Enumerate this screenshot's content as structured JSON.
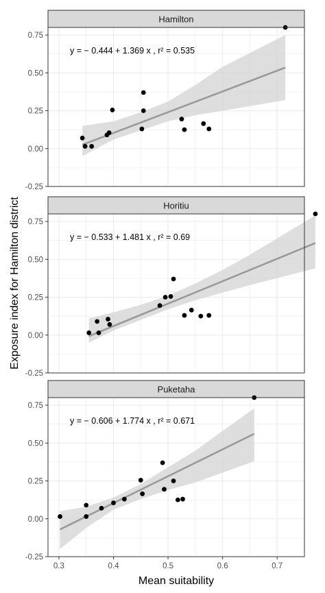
{
  "chart_data": [
    {
      "type": "scatter",
      "panel": "Hamilton",
      "equation": "y = − 0.444 + 1.369 x , r² = 0.535",
      "xlim": [
        0.28,
        0.75
      ],
      "ylim": [
        -0.25,
        0.8
      ],
      "x_ticks": [
        0.3,
        0.4,
        0.5,
        0.6,
        0.7
      ],
      "y_tick_labels": [
        "-0.25",
        "0.00",
        "0.25",
        "0.50",
        "0.75"
      ],
      "grid": true,
      "fit": {
        "intercept": -0.444,
        "slope": 1.369,
        "x_range": [
          0.343,
          0.715
        ]
      },
      "ci_band": [
        {
          "x": 0.343,
          "lo": -0.05,
          "hi": 0.15
        },
        {
          "x": 0.4,
          "lo": 0.06,
          "hi": 0.18
        },
        {
          "x": 0.45,
          "lo": 0.12,
          "hi": 0.24
        },
        {
          "x": 0.5,
          "lo": 0.18,
          "hi": 0.31
        },
        {
          "x": 0.55,
          "lo": 0.22,
          "hi": 0.42
        },
        {
          "x": 0.6,
          "lo": 0.25,
          "hi": 0.54
        },
        {
          "x": 0.715,
          "lo": 0.32,
          "hi": 0.75
        }
      ],
      "points": [
        {
          "x": 0.343,
          "y": 0.07
        },
        {
          "x": 0.348,
          "y": 0.015
        },
        {
          "x": 0.36,
          "y": 0.015
        },
        {
          "x": 0.388,
          "y": 0.09
        },
        {
          "x": 0.392,
          "y": 0.105
        },
        {
          "x": 0.398,
          "y": 0.255
        },
        {
          "x": 0.452,
          "y": 0.13
        },
        {
          "x": 0.455,
          "y": 0.25
        },
        {
          "x": 0.455,
          "y": 0.37
        },
        {
          "x": 0.525,
          "y": 0.195
        },
        {
          "x": 0.53,
          "y": 0.125
        },
        {
          "x": 0.565,
          "y": 0.165
        },
        {
          "x": 0.575,
          "y": 0.13
        },
        {
          "x": 0.715,
          "y": 0.8
        }
      ]
    },
    {
      "type": "scatter",
      "panel": "Horitiu",
      "equation": "y = − 0.533 + 1.481 x , r² = 0.69",
      "xlim": [
        0.28,
        0.75
      ],
      "ylim": [
        -0.25,
        0.8
      ],
      "x_ticks": [
        0.3,
        0.4,
        0.5,
        0.6,
        0.7
      ],
      "y_tick_labels": [
        "-0.25",
        "0.00",
        "0.25",
        "0.50",
        "0.75"
      ],
      "grid": true,
      "fit": {
        "intercept": -0.533,
        "slope": 1.481,
        "x_range": [
          0.355,
          0.77
        ]
      },
      "ci_band": [
        {
          "x": 0.355,
          "lo": -0.05,
          "hi": 0.11
        },
        {
          "x": 0.4,
          "lo": 0.03,
          "hi": 0.15
        },
        {
          "x": 0.45,
          "lo": 0.1,
          "hi": 0.2
        },
        {
          "x": 0.5,
          "lo": 0.17,
          "hi": 0.26
        },
        {
          "x": 0.55,
          "lo": 0.23,
          "hi": 0.34
        },
        {
          "x": 0.6,
          "lo": 0.28,
          "hi": 0.43
        },
        {
          "x": 0.65,
          "lo": 0.33,
          "hi": 0.53
        },
        {
          "x": 0.77,
          "lo": 0.44,
          "hi": 0.79
        }
      ],
      "points": [
        {
          "x": 0.355,
          "y": 0.015
        },
        {
          "x": 0.37,
          "y": 0.09
        },
        {
          "x": 0.373,
          "y": 0.015
        },
        {
          "x": 0.39,
          "y": 0.105
        },
        {
          "x": 0.393,
          "y": 0.07
        },
        {
          "x": 0.485,
          "y": 0.195
        },
        {
          "x": 0.495,
          "y": 0.25
        },
        {
          "x": 0.505,
          "y": 0.255
        },
        {
          "x": 0.51,
          "y": 0.37
        },
        {
          "x": 0.53,
          "y": 0.13
        },
        {
          "x": 0.543,
          "y": 0.165
        },
        {
          "x": 0.56,
          "y": 0.125
        },
        {
          "x": 0.575,
          "y": 0.13
        },
        {
          "x": 0.77,
          "y": 0.8
        }
      ]
    },
    {
      "type": "scatter",
      "panel": "Puketaha",
      "equation": "y = − 0.606 + 1.774 x , r² = 0.671",
      "xlim": [
        0.28,
        0.75
      ],
      "ylim": [
        -0.25,
        0.8
      ],
      "x_ticks": [
        0.3,
        0.4,
        0.5,
        0.6,
        0.7
      ],
      "y_tick_labels": [
        "-0.25",
        "0.00",
        "0.25",
        "0.50",
        "0.75"
      ],
      "grid": true,
      "fit": {
        "intercept": -0.606,
        "slope": 1.774,
        "x_range": [
          0.302,
          0.658
        ]
      },
      "ci_band": [
        {
          "x": 0.302,
          "lo": -0.2,
          "hi": 0.05
        },
        {
          "x": 0.35,
          "lo": -0.06,
          "hi": 0.08
        },
        {
          "x": 0.4,
          "lo": 0.06,
          "hi": 0.14
        },
        {
          "x": 0.45,
          "lo": 0.13,
          "hi": 0.23
        },
        {
          "x": 0.5,
          "lo": 0.19,
          "hi": 0.34
        },
        {
          "x": 0.55,
          "lo": 0.24,
          "hi": 0.45
        },
        {
          "x": 0.658,
          "lo": 0.38,
          "hi": 0.73
        }
      ],
      "points": [
        {
          "x": 0.302,
          "y": 0.015
        },
        {
          "x": 0.35,
          "y": 0.015
        },
        {
          "x": 0.35,
          "y": 0.09
        },
        {
          "x": 0.378,
          "y": 0.07
        },
        {
          "x": 0.4,
          "y": 0.105
        },
        {
          "x": 0.42,
          "y": 0.13
        },
        {
          "x": 0.45,
          "y": 0.255
        },
        {
          "x": 0.453,
          "y": 0.165
        },
        {
          "x": 0.49,
          "y": 0.37
        },
        {
          "x": 0.493,
          "y": 0.195
        },
        {
          "x": 0.51,
          "y": 0.25
        },
        {
          "x": 0.518,
          "y": 0.125
        },
        {
          "x": 0.527,
          "y": 0.13
        },
        {
          "x": 0.658,
          "y": 0.8
        }
      ]
    }
  ],
  "xlabel": "Mean suitability",
  "ylabel": "Exposure index for Hamilton district",
  "x_tick_labels": [
    "0.3",
    "0.4",
    "0.5",
    "0.6",
    "0.7"
  ],
  "colors": {
    "points": "#000000",
    "fit_line": "#999999",
    "ci_band": "#d3d3d3",
    "strip_fill": "#d9d9d9",
    "panel_border": "#333333",
    "grid": "#ebebeb"
  }
}
